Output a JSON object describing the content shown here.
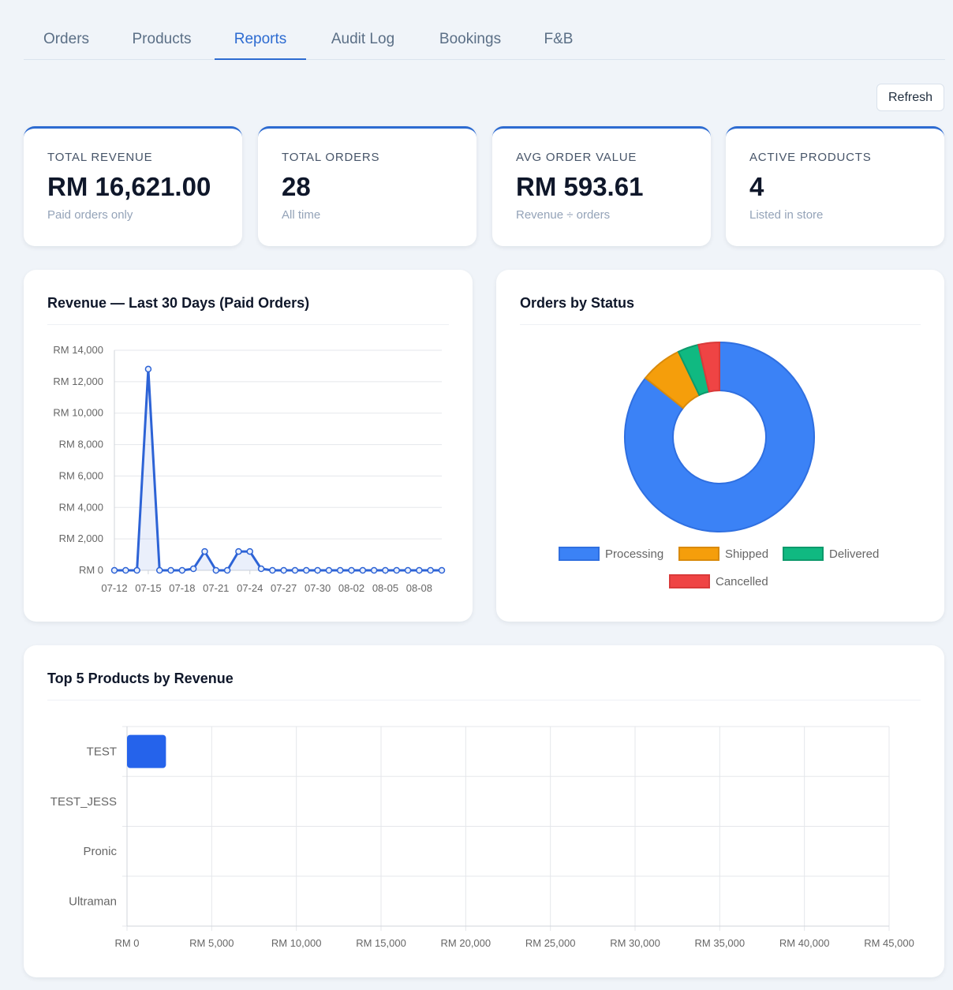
{
  "tabs": [
    {
      "label": "Orders"
    },
    {
      "label": "Products"
    },
    {
      "label": "Reports"
    },
    {
      "label": "Audit Log"
    },
    {
      "label": "Bookings"
    },
    {
      "label": "F&B"
    }
  ],
  "active_tab": "Reports",
  "toolbar": {
    "refresh_label": "Refresh"
  },
  "kpis": [
    {
      "label": "TOTAL REVENUE",
      "value": "RM 16,621.00",
      "sub": "Paid orders only"
    },
    {
      "label": "TOTAL ORDERS",
      "value": "28",
      "sub": "All time"
    },
    {
      "label": "AVG ORDER VALUE",
      "value": "RM 593.61",
      "sub": "Revenue ÷ orders"
    },
    {
      "label": "ACTIVE PRODUCTS",
      "value": "4",
      "sub": "Listed in store"
    }
  ],
  "colors": {
    "accent": "#2d6bd1",
    "line": "#2d63d6",
    "bar": "#2563eb"
  },
  "chart_data": [
    {
      "type": "line",
      "title": "Revenue — Last 30 Days (Paid Orders)",
      "x": [
        "07-12",
        "07-13",
        "07-14",
        "07-15",
        "07-16",
        "07-17",
        "07-18",
        "07-19",
        "07-20",
        "07-21",
        "07-22",
        "07-23",
        "07-24",
        "07-25",
        "07-26",
        "07-27",
        "07-28",
        "07-29",
        "07-30",
        "07-31",
        "08-01",
        "08-02",
        "08-03",
        "08-04",
        "08-05",
        "08-06",
        "08-07",
        "08-08",
        "08-09",
        "08-10"
      ],
      "xticks": [
        "07-12",
        "07-15",
        "07-18",
        "07-21",
        "07-24",
        "07-27",
        "07-30",
        "08-02",
        "08-05",
        "08-08"
      ],
      "values": [
        0,
        0,
        0,
        12800,
        0,
        0,
        0,
        100,
        1200,
        0,
        0,
        1200,
        1200,
        100,
        0,
        0,
        0,
        0,
        0,
        0,
        0,
        0,
        0,
        0,
        0,
        0,
        0,
        0,
        0,
        0
      ],
      "ylim": [
        0,
        14000
      ],
      "yticks": [
        "RM 0",
        "RM 2,000",
        "RM 4,000",
        "RM 6,000",
        "RM 8,000",
        "RM 10,000",
        "RM 12,000",
        "RM 14,000"
      ],
      "grid": true
    },
    {
      "type": "pie",
      "title": "Orders by Status",
      "labels": [
        "Processing",
        "Shipped",
        "Delivered",
        "Cancelled"
      ],
      "values": [
        24,
        2,
        1,
        1
      ],
      "colors": [
        "#3b82f6",
        "#f59e0b",
        "#10b981",
        "#ef4444"
      ],
      "borders": [
        "#2f6fe0",
        "#d98a0b",
        "#0d9a6c",
        "#d93a3a"
      ],
      "legend": "bottom"
    },
    {
      "type": "bar",
      "orientation": "horizontal",
      "title": "Top 5 Products by Revenue",
      "categories": [
        "TEST",
        "TEST_JESS",
        "Pronic",
        "Ultraman"
      ],
      "values": [
        2300,
        0,
        0,
        0
      ],
      "xlim": [
        0,
        45000
      ],
      "xticks": [
        "RM 0",
        "RM 5,000",
        "RM 10,000",
        "RM 15,000",
        "RM 20,000",
        "RM 25,000",
        "RM 30,000",
        "RM 35,000",
        "RM 40,000",
        "RM 45,000"
      ],
      "grid": true
    }
  ]
}
